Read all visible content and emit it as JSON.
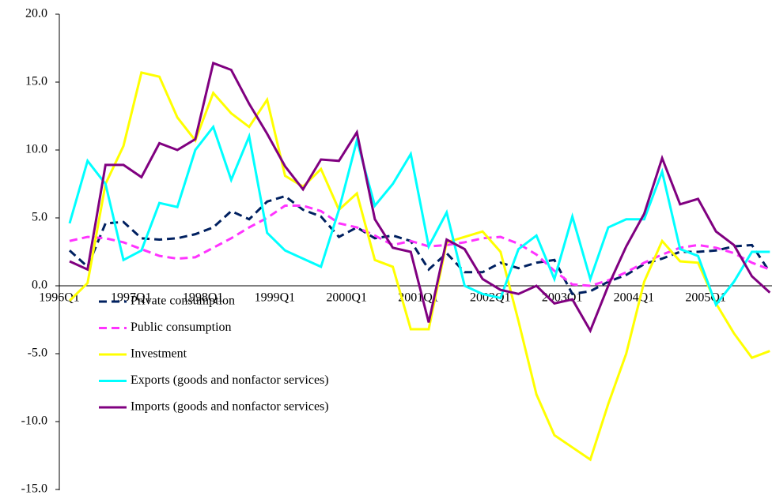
{
  "chart_data": {
    "type": "line",
    "categories": [
      "1996Q1",
      null,
      null,
      null,
      "1997Q1",
      null,
      null,
      null,
      "1998Q1",
      null,
      null,
      null,
      "1999Q1",
      null,
      null,
      null,
      "2000Q1",
      null,
      null,
      null,
      "2001Q1",
      null,
      null,
      null,
      "2002Q1",
      null,
      null,
      null,
      "2003Q1",
      null,
      null,
      null,
      "2004Q1",
      null,
      null,
      null,
      "2005Q1",
      null,
      null,
      null
    ],
    "series": [
      {
        "name": "Private consumption",
        "color": "#002060",
        "dashed": true,
        "values": [
          2.6,
          1.4,
          4.6,
          4.7,
          3.5,
          3.4,
          3.5,
          3.8,
          4.3,
          5.5,
          4.9,
          6.2,
          6.6,
          5.6,
          5.1,
          3.6,
          4.3,
          3.5,
          3.7,
          3.3,
          1.2,
          2.4,
          1.0,
          1.0,
          1.7,
          1.3,
          1.7,
          1.9,
          -0.6,
          -0.4,
          0.3,
          0.8,
          1.6,
          2.0,
          2.5,
          2.5,
          2.6,
          2.9,
          3.0,
          1.0
        ]
      },
      {
        "name": "Public consumption",
        "color": "#ff33ff",
        "dashed": true,
        "values": [
          3.3,
          3.6,
          3.5,
          3.2,
          2.7,
          2.2,
          2.0,
          2.1,
          2.8,
          3.5,
          4.3,
          5.0,
          5.9,
          5.9,
          5.5,
          4.6,
          4.3,
          3.7,
          3.0,
          3.3,
          2.9,
          3.0,
          3.2,
          3.5,
          3.6,
          3.1,
          2.3,
          1.1,
          0.1,
          0.0,
          0.4,
          1.0,
          1.7,
          2.3,
          2.8,
          3.0,
          2.8,
          2.4,
          1.7,
          1.2
        ]
      },
      {
        "name": "Investment",
        "color": "#ffff00",
        "dashed": false,
        "values": [
          -1.1,
          0.2,
          7.5,
          10.3,
          15.7,
          15.4,
          12.4,
          10.7,
          14.2,
          12.7,
          11.7,
          13.7,
          8.1,
          7.3,
          8.6,
          5.6,
          6.8,
          1.9,
          1.4,
          -3.2,
          -3.2,
          3.2,
          3.6,
          4.0,
          2.5,
          -2.6,
          -8.0,
          -11.0,
          -11.9,
          -12.8,
          -8.7,
          -5.0,
          0.3,
          3.3,
          1.8,
          1.7,
          -1.3,
          -3.5,
          -5.3,
          -4.8
        ]
      },
      {
        "name": "Exports (goods and nonfactor services)",
        "color": "#00ffff",
        "dashed": false,
        "values": [
          4.6,
          9.2,
          7.5,
          1.9,
          2.6,
          6.1,
          5.8,
          10.0,
          11.7,
          7.8,
          11.0,
          3.9,
          2.6,
          2.0,
          1.4,
          5.6,
          10.7,
          5.9,
          7.5,
          9.7,
          2.9,
          5.4,
          0.0,
          -0.6,
          -0.9,
          2.7,
          3.7,
          0.5,
          5.1,
          0.5,
          4.3,
          4.9,
          4.9,
          8.4,
          2.7,
          2.2,
          -1.4,
          0.3,
          2.5,
          2.5
        ]
      },
      {
        "name": "Imports (goods and nonfactor services)",
        "color": "#800080",
        "dashed": false,
        "values": [
          1.8,
          1.2,
          8.9,
          8.9,
          8.0,
          10.5,
          10.0,
          10.8,
          16.4,
          15.9,
          13.4,
          11.2,
          8.8,
          7.1,
          9.3,
          9.2,
          11.3,
          4.9,
          2.8,
          2.5,
          -2.7,
          3.4,
          2.7,
          0.5,
          -0.3,
          -0.6,
          0.0,
          -1.3,
          -1.0,
          -3.3,
          0.0,
          2.9,
          5.3,
          9.4,
          6.0,
          6.4,
          4.0,
          3.0,
          0.7,
          -0.5
        ]
      }
    ],
    "ylim": [
      -15,
      20
    ],
    "yticks": [
      {
        "value": -15,
        "label": "-15.0"
      },
      {
        "value": -10,
        "label": "-10.0"
      },
      {
        "value": -5,
        "label": "-5.0"
      },
      {
        "value": 0,
        "label": "0.0"
      },
      {
        "value": 5,
        "label": "5.0"
      },
      {
        "value": 10,
        "label": "10.0"
      },
      {
        "value": 15,
        "label": "15.0"
      },
      {
        "value": 20,
        "label": "20.0"
      }
    ],
    "legend": "lower-left"
  }
}
